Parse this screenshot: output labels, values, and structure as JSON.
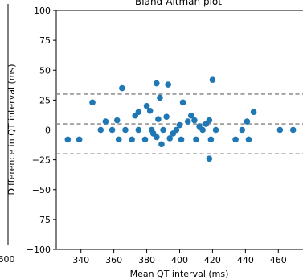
{
  "chart_data": {
    "type": "scatter",
    "title": "Bland-Altman plot",
    "xlabel": "Mean QT interval (ms)",
    "ylabel": "Difference in QT interval (ms)",
    "xlim": [
      325,
      475
    ],
    "ylim": [
      -100,
      100
    ],
    "xticks": [
      340,
      360,
      380,
      400,
      420,
      440,
      460
    ],
    "yticks": [
      -100,
      -75,
      -50,
      -25,
      0,
      25,
      50,
      75,
      100
    ],
    "grid": false,
    "point_color": "#1f77b4",
    "line_color": "#808080",
    "reference_lines": [
      {
        "y": 30
      },
      {
        "y": 5
      },
      {
        "y": -20
      }
    ],
    "edge_fragment": "600",
    "points": [
      {
        "x": 332,
        "y": -8
      },
      {
        "x": 339,
        "y": -8
      },
      {
        "x": 347,
        "y": 23
      },
      {
        "x": 352,
        "y": 0
      },
      {
        "x": 355,
        "y": 7
      },
      {
        "x": 359,
        "y": 0
      },
      {
        "x": 362,
        "y": 8
      },
      {
        "x": 363,
        "y": -8
      },
      {
        "x": 365,
        "y": 35
      },
      {
        "x": 367,
        "y": 0
      },
      {
        "x": 371,
        "y": -8
      },
      {
        "x": 373,
        "y": 12
      },
      {
        "x": 375,
        "y": 15
      },
      {
        "x": 375,
        "y": 0
      },
      {
        "x": 379,
        "y": -8
      },
      {
        "x": 380,
        "y": 20
      },
      {
        "x": 382,
        "y": 16
      },
      {
        "x": 383,
        "y": 0
      },
      {
        "x": 384,
        "y": -3
      },
      {
        "x": 386,
        "y": 39
      },
      {
        "x": 386,
        "y": -6
      },
      {
        "x": 387,
        "y": 9
      },
      {
        "x": 388,
        "y": 27
      },
      {
        "x": 389,
        "y": -12
      },
      {
        "x": 390,
        "y": 0
      },
      {
        "x": 392,
        "y": 11
      },
      {
        "x": 393,
        "y": 38
      },
      {
        "x": 394,
        "y": -7
      },
      {
        "x": 396,
        "y": -3
      },
      {
        "x": 398,
        "y": 0
      },
      {
        "x": 400,
        "y": 4
      },
      {
        "x": 401,
        "y": -8
      },
      {
        "x": 402,
        "y": 23
      },
      {
        "x": 405,
        "y": 7
      },
      {
        "x": 407,
        "y": 12
      },
      {
        "x": 409,
        "y": 8
      },
      {
        "x": 410,
        "y": -8
      },
      {
        "x": 412,
        "y": 3
      },
      {
        "x": 414,
        "y": 0
      },
      {
        "x": 416,
        "y": 5
      },
      {
        "x": 418,
        "y": 8
      },
      {
        "x": 418,
        "y": -24
      },
      {
        "x": 419,
        "y": -8
      },
      {
        "x": 420,
        "y": 42
      },
      {
        "x": 422,
        "y": 0
      },
      {
        "x": 434,
        "y": -8
      },
      {
        "x": 438,
        "y": 0
      },
      {
        "x": 441,
        "y": 7
      },
      {
        "x": 442,
        "y": -8
      },
      {
        "x": 445,
        "y": 15
      },
      {
        "x": 461,
        "y": 0
      },
      {
        "x": 469,
        "y": 0
      }
    ]
  }
}
